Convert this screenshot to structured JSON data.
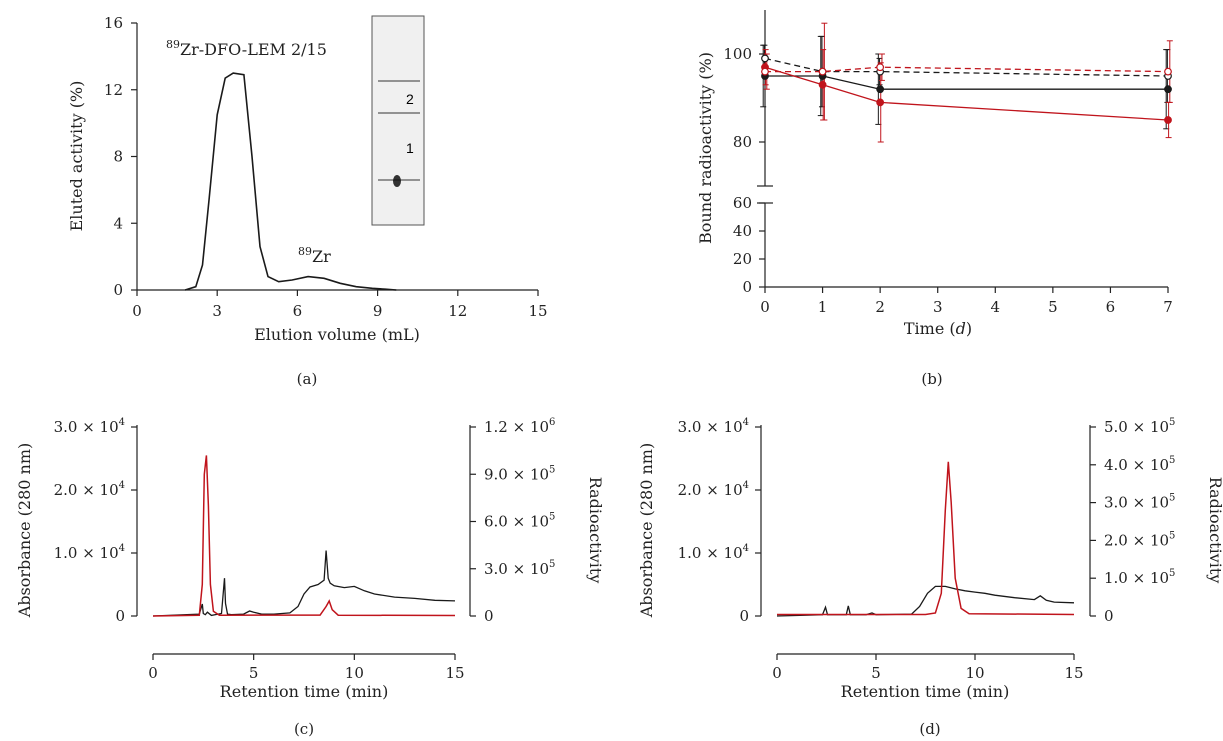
{
  "chart_data": [
    {
      "panel": "a",
      "type": "line",
      "caption": "(a)",
      "xlabel": "Elution volume (mL)",
      "ylabel": "Eluted activity (%)",
      "xlim": [
        0,
        15
      ],
      "ylim": [
        0,
        16
      ],
      "xticks": [
        "0",
        "3",
        "6",
        "9",
        "12",
        "15"
      ],
      "yticks": [
        "0",
        "4",
        "8",
        "12",
        "16"
      ],
      "annotations": [
        {
          "sup": "89",
          "text": "Zr-DFO-LEM 2/15"
        },
        {
          "sup": "89",
          "text": "Zr"
        }
      ],
      "inset_labels": [
        "2",
        "1"
      ],
      "series": [
        {
          "color": "#1a1a1a",
          "x": [
            1.8,
            2.2,
            2.45,
            2.7,
            3.0,
            3.3,
            3.6,
            4.0,
            4.3,
            4.6,
            4.9,
            5.3,
            5.8,
            6.4,
            7.0,
            7.6,
            8.2,
            8.8,
            9.3,
            9.7
          ],
          "y": [
            0,
            0.2,
            1.5,
            5.5,
            10.5,
            12.7,
            13.0,
            12.9,
            8.0,
            2.6,
            0.8,
            0.5,
            0.6,
            0.8,
            0.7,
            0.4,
            0.2,
            0.1,
            0.05,
            0
          ]
        }
      ]
    },
    {
      "panel": "b",
      "type": "line",
      "caption": "(b)",
      "xlabel": "Time",
      "xlabel_unit": "d",
      "ylabel": "Bound radioactivity (%)",
      "xlim": [
        0,
        7
      ],
      "y_upper_range": [
        70,
        110
      ],
      "y_lower_range": [
        0,
        60
      ],
      "xticks": [
        "0",
        "1",
        "2",
        "3",
        "4",
        "5",
        "6",
        "7"
      ],
      "yticks_upper": [
        "80",
        "100"
      ],
      "yticks_lower": [
        "0",
        "20",
        "40",
        "60"
      ],
      "series": [
        {
          "color": "#1a1a1a",
          "style": "solid",
          "marker": "filled",
          "x": [
            0,
            1,
            2,
            7
          ],
          "y": [
            95,
            95,
            92,
            92
          ],
          "err": [
            7,
            9,
            8,
            9
          ]
        },
        {
          "color": "#1a1a1a",
          "style": "dashed",
          "marker": "open",
          "x": [
            0,
            1,
            2,
            7
          ],
          "y": [
            99,
            96,
            96,
            95
          ],
          "err": [
            3,
            8,
            3,
            6
          ]
        },
        {
          "color": "#c0141c",
          "style": "solid",
          "marker": "filled",
          "x": [
            0,
            1,
            2,
            7
          ],
          "y": [
            97,
            93,
            89,
            85
          ],
          "err": [
            4,
            8,
            9,
            4
          ]
        },
        {
          "color": "#c0141c",
          "style": "dashed",
          "marker": "open",
          "x": [
            0,
            1,
            2,
            7
          ],
          "y": [
            96,
            96,
            97,
            96
          ],
          "err": [
            4,
            11,
            3,
            7
          ]
        }
      ]
    },
    {
      "panel": "c",
      "type": "line",
      "caption": "(c)",
      "xlabel": "Retention time (min)",
      "ylabel_left": "Absorbance (280 nm)",
      "ylabel_right": "Radioactivity",
      "xlim": [
        0,
        15
      ],
      "yticks_left": [
        "0",
        "1.0 × 10",
        "2.0 × 10",
        "3.0 × 10"
      ],
      "yticks_left_exp": "4",
      "yticks_right": [
        "0",
        "3.0 × 10",
        "6.0 × 10",
        "9.0 × 10",
        "1.2 × 10"
      ],
      "yticks_right_exp": "5",
      "yticks_right_top_exp": "6",
      "xticks": [
        "0",
        "5",
        "10",
        "15"
      ],
      "series": [
        {
          "name_hidden": "absorbance",
          "color": "#1a1a1a",
          "x": [
            0,
            2.3,
            2.45,
            2.5,
            2.6,
            2.7,
            2.9,
            3.4,
            3.55,
            3.6,
            3.7,
            3.9,
            4.5,
            4.8,
            5.0,
            5.4,
            6.0,
            6.8,
            7.2,
            7.5,
            7.8,
            8.2,
            8.5,
            8.6,
            8.7,
            8.8,
            9.0,
            9.5,
            10.0,
            10.5,
            11.0,
            12.0,
            13.0,
            14.0,
            15.0
          ],
          "y": [
            0,
            300,
            1900,
            400,
            200,
            600,
            100,
            400,
            6000,
            2000,
            300,
            200,
            300,
            800,
            600,
            300,
            300,
            500,
            1500,
            3500,
            4600,
            5000,
            5700,
            10400,
            6000,
            5200,
            4800,
            4500,
            4700,
            4000,
            3500,
            3000,
            2800,
            2500,
            2400
          ]
        },
        {
          "name_hidden": "radioactivity",
          "color": "#c0141c",
          "x": [
            0,
            2.3,
            2.45,
            2.55,
            2.65,
            2.75,
            2.85,
            3.0,
            3.3,
            8.3,
            8.6,
            8.75,
            8.9,
            9.2,
            15.0
          ],
          "y": [
            0,
            5000,
            200000,
            900000,
            1020000,
            700000,
            200000,
            30000,
            5000,
            6000,
            60000,
            95000,
            40000,
            5000,
            3000
          ]
        }
      ]
    },
    {
      "panel": "d",
      "type": "line",
      "caption": "(d)",
      "xlabel": "Retention time (min)",
      "ylabel_left": "Absorbance (280 nm)",
      "ylabel_right": "Radioactivity",
      "xlim": [
        0,
        15
      ],
      "yticks_left": [
        "0",
        "1.0 × 10",
        "2.0 × 10",
        "3.0 × 10"
      ],
      "yticks_left_exp": "4",
      "yticks_right": [
        "0",
        "1.0 × 10",
        "2.0 × 10",
        "3.0 × 10",
        "4.0 × 10",
        "5.0 × 10"
      ],
      "yticks_right_exp": "5",
      "xticks": [
        "0",
        "5",
        "10",
        "15"
      ],
      "series": [
        {
          "name_hidden": "absorbance",
          "color": "#1a1a1a",
          "x": [
            0,
            2.3,
            2.45,
            2.55,
            3.5,
            3.6,
            3.7,
            4.5,
            4.8,
            5.0,
            6.8,
            7.2,
            7.6,
            8.0,
            8.5,
            9.0,
            9.5,
            10.0,
            10.5,
            11.0,
            12.0,
            13.0,
            13.3,
            13.6,
            14.0,
            15.0
          ],
          "y": [
            0,
            200,
            1400,
            200,
            200,
            1600,
            200,
            200,
            500,
            200,
            300,
            1500,
            3600,
            4700,
            4700,
            4300,
            4000,
            3800,
            3600,
            3300,
            2900,
            2600,
            3200,
            2500,
            2200,
            2100
          ]
        },
        {
          "name_hidden": "radioactivity",
          "color": "#c0141c",
          "x": [
            0,
            7.5,
            8.0,
            8.3,
            8.5,
            8.65,
            8.8,
            9.0,
            9.3,
            9.7,
            15.0
          ],
          "y": [
            4000,
            4000,
            8000,
            60000,
            280000,
            408000,
            300000,
            100000,
            20000,
            6000,
            4000
          ]
        }
      ]
    }
  ]
}
